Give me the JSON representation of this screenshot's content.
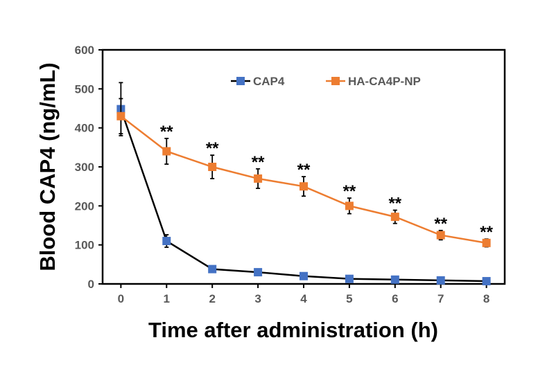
{
  "chart_data": {
    "type": "line",
    "xlabel": "Time after administration (h)",
    "ylabel": "Blood CAP4 (ng/mL)",
    "xlim": [
      0,
      8
    ],
    "ylim": [
      0,
      600
    ],
    "x_ticks": [
      0,
      1,
      2,
      3,
      4,
      5,
      6,
      7,
      8
    ],
    "y_ticks": [
      0,
      100,
      200,
      300,
      400,
      500,
      600
    ],
    "grid": false,
    "legend_position": "top-right",
    "x": [
      0,
      1,
      2,
      3,
      4,
      5,
      6,
      7,
      8
    ],
    "series": [
      {
        "name": "CAP4",
        "color": "#000000",
        "marker_color": "#4472C4",
        "values": [
          448,
          110,
          38,
          30,
          20,
          13,
          11,
          9,
          7
        ],
        "error": [
          68,
          16,
          0,
          0,
          0,
          0,
          0,
          0,
          0
        ]
      },
      {
        "name": "HA-CA4P-NP",
        "color": "#ED7D31",
        "marker_color": "#ED7D31",
        "values": [
          430,
          340,
          300,
          270,
          250,
          200,
          172,
          125,
          105
        ],
        "error": [
          45,
          33,
          30,
          25,
          25,
          20,
          17,
          12,
          10
        ]
      }
    ],
    "annotations": [
      {
        "text": "**",
        "x": 1
      },
      {
        "text": "**",
        "x": 2
      },
      {
        "text": "**",
        "x": 3
      },
      {
        "text": "**",
        "x": 4
      },
      {
        "text": "**",
        "x": 5
      },
      {
        "text": "**",
        "x": 6
      },
      {
        "text": "**",
        "x": 7
      },
      {
        "text": "**",
        "x": 8
      }
    ]
  }
}
